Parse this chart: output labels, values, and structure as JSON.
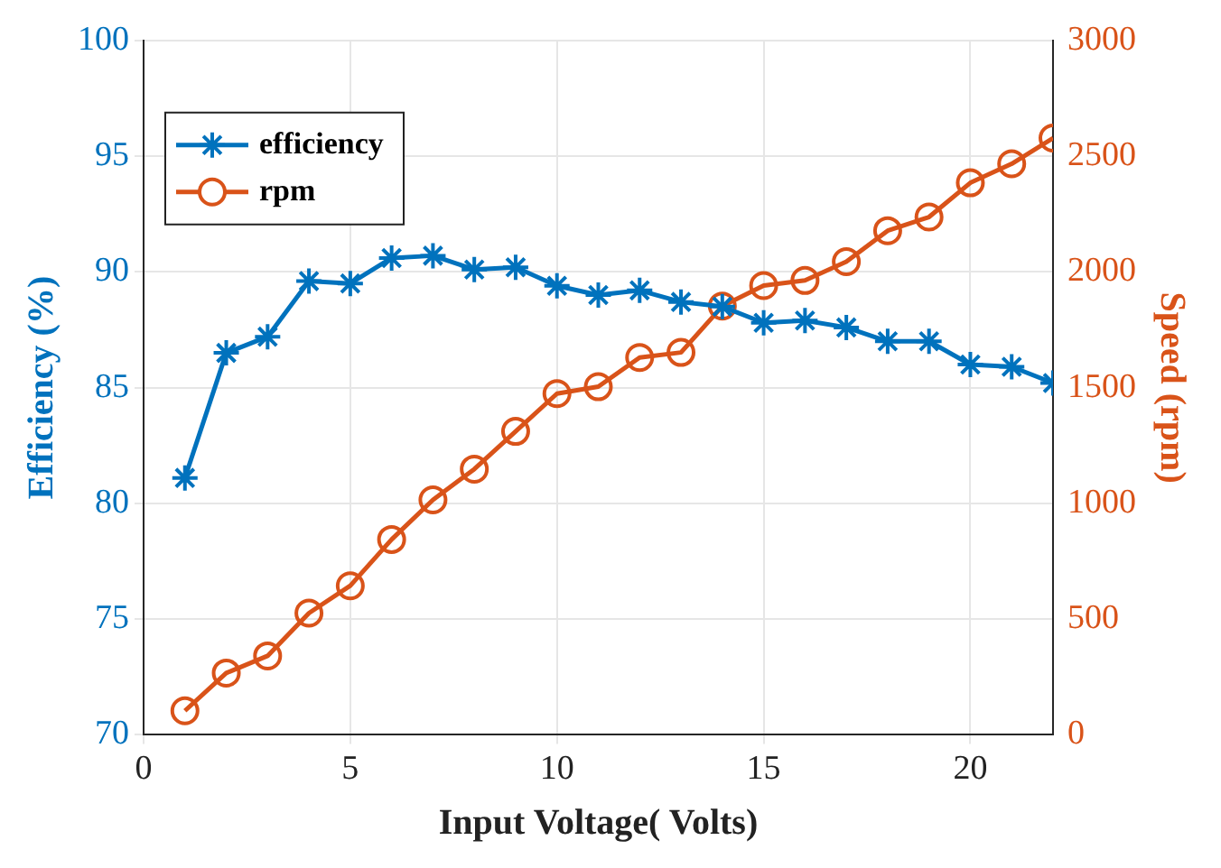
{
  "chart_data": {
    "type": "line",
    "xlabel": "Input Voltage( Volts)",
    "ylabel": "Efficiency (%)",
    "y2label": "Speed (rpm)",
    "x": [
      1,
      2,
      3,
      4,
      5,
      6,
      7,
      8,
      9,
      10,
      11,
      12,
      13,
      14,
      15,
      16,
      17,
      18,
      19,
      20,
      21,
      22
    ],
    "series": [
      {
        "name": "efficiency",
        "color": "#0072bd",
        "marker": "cross",
        "values": [
          81.1,
          86.5,
          87.2,
          89.6,
          89.5,
          90.6,
          90.7,
          90.1,
          90.2,
          89.4,
          89.0,
          89.2,
          88.7,
          88.5,
          87.8,
          87.9,
          87.6,
          87.0,
          87.0,
          86.0,
          85.9,
          85.2
        ]
      },
      {
        "name": "rpm",
        "color": "#d95319",
        "marker": "circle",
        "axis": "y2",
        "values": [
          104,
          267,
          341,
          526,
          644,
          844,
          1015,
          1148,
          1311,
          1474,
          1504,
          1630,
          1652,
          1852,
          1941,
          1963,
          2044,
          2178,
          2237,
          2385,
          2467,
          2578
        ]
      }
    ],
    "xlim": [
      0,
      22
    ],
    "xticks": [
      0,
      5,
      10,
      15,
      20
    ],
    "ylim": [
      70,
      100
    ],
    "yticks": [
      70,
      75,
      80,
      85,
      90,
      95,
      100
    ],
    "y2lim": [
      0,
      3000
    ],
    "y2ticks": [
      0,
      500,
      1000,
      1500,
      2000,
      2500,
      3000
    ],
    "grid": true,
    "legend": "top left",
    "line_style": "solid"
  }
}
